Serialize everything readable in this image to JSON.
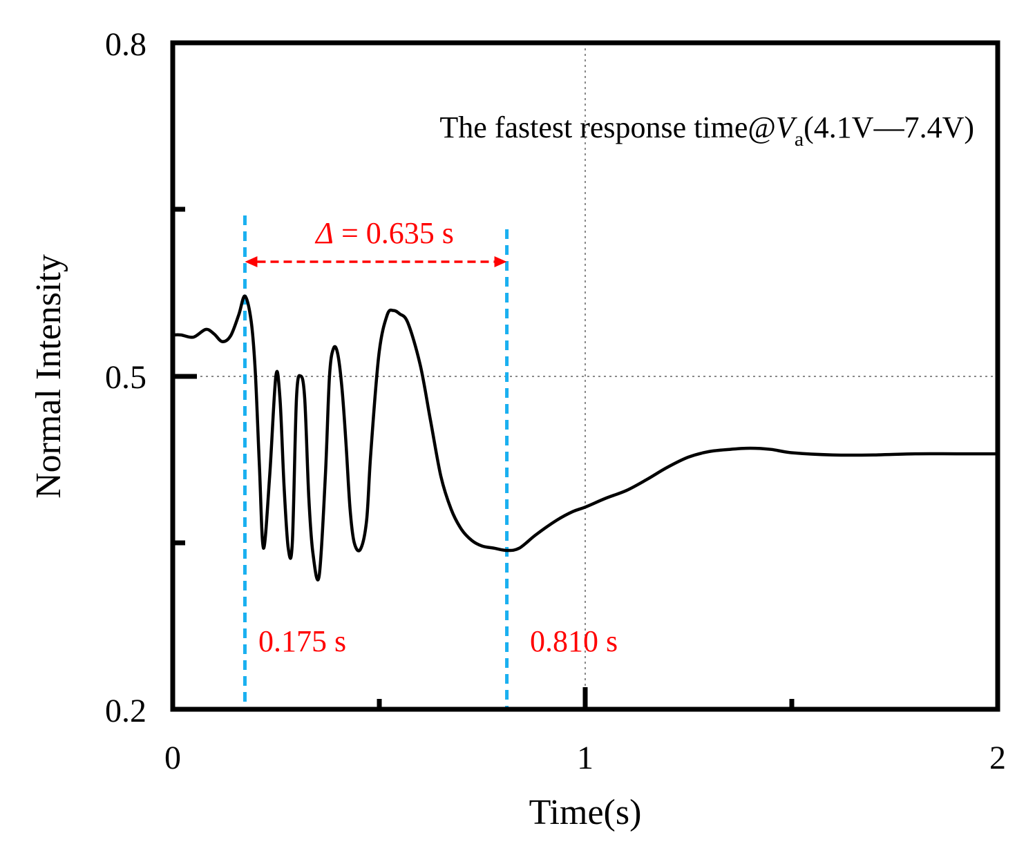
{
  "chart_data": {
    "type": "line",
    "title": "",
    "xlabel": "Time(s)",
    "ylabel": "Normal Intensity",
    "xlim": [
      0,
      2
    ],
    "ylim": [
      0.2,
      0.8
    ],
    "xticks": [
      0,
      0.5,
      1,
      1.5,
      2
    ],
    "xtick_labels": [
      "0",
      "",
      "1",
      "",
      "2"
    ],
    "yticks": [
      0.2,
      0.35,
      0.5,
      0.65,
      0.8
    ],
    "ytick_labels": [
      "0.2",
      "",
      "0.5",
      "",
      "0.8"
    ],
    "grid": {
      "x": [
        1
      ],
      "y": [
        0.5
      ],
      "style": "dotted"
    },
    "annotation": {
      "prefix": "The fastest response time@",
      "var": "V",
      "sub": "a",
      "suffix": "(4.1V—7.4V)"
    },
    "markers": [
      {
        "x": 0.175,
        "label": "0.175 s",
        "color": "#1ab0f0"
      },
      {
        "x": 0.81,
        "label": "0.810 s",
        "color": "#1ab0f0"
      }
    ],
    "delta": {
      "symbol": "Δ",
      "text": " = 0.635 s",
      "color": "#ff0000",
      "from": 0.175,
      "to": 0.81
    },
    "series": [
      {
        "name": "Normal Intensity",
        "color": "#000000",
        "x": [
          0,
          0.02,
          0.05,
          0.08,
          0.1,
          0.12,
          0.14,
          0.16,
          0.175,
          0.19,
          0.2,
          0.21,
          0.22,
          0.235,
          0.25,
          0.26,
          0.27,
          0.28,
          0.29,
          0.3,
          0.31,
          0.32,
          0.33,
          0.34,
          0.355,
          0.37,
          0.38,
          0.39,
          0.4,
          0.41,
          0.42,
          0.43,
          0.44,
          0.455,
          0.47,
          0.48,
          0.5,
          0.52,
          0.535,
          0.55,
          0.57,
          0.6,
          0.625,
          0.65,
          0.675,
          0.7,
          0.725,
          0.75,
          0.78,
          0.81,
          0.84,
          0.88,
          0.93,
          0.97,
          1.0,
          1.05,
          1.1,
          1.15,
          1.2,
          1.25,
          1.3,
          1.35,
          1.4,
          1.45,
          1.5,
          1.6,
          1.7,
          1.8,
          1.9,
          2.0
        ],
        "y": [
          0.537,
          0.537,
          0.535,
          0.542,
          0.538,
          0.531,
          0.536,
          0.555,
          0.572,
          0.55,
          0.505,
          0.42,
          0.345,
          0.41,
          0.5,
          0.48,
          0.4,
          0.345,
          0.35,
          0.48,
          0.5,
          0.48,
          0.39,
          0.34,
          0.32,
          0.41,
          0.5,
          0.525,
          0.52,
          0.49,
          0.44,
          0.38,
          0.35,
          0.344,
          0.37,
          0.43,
          0.52,
          0.555,
          0.559,
          0.556,
          0.548,
          0.51,
          0.46,
          0.41,
          0.38,
          0.362,
          0.352,
          0.347,
          0.345,
          0.343,
          0.345,
          0.357,
          0.37,
          0.378,
          0.382,
          0.39,
          0.397,
          0.407,
          0.418,
          0.427,
          0.432,
          0.434,
          0.435,
          0.434,
          0.431,
          0.429,
          0.429,
          0.43,
          0.43,
          0.43
        ]
      }
    ]
  }
}
